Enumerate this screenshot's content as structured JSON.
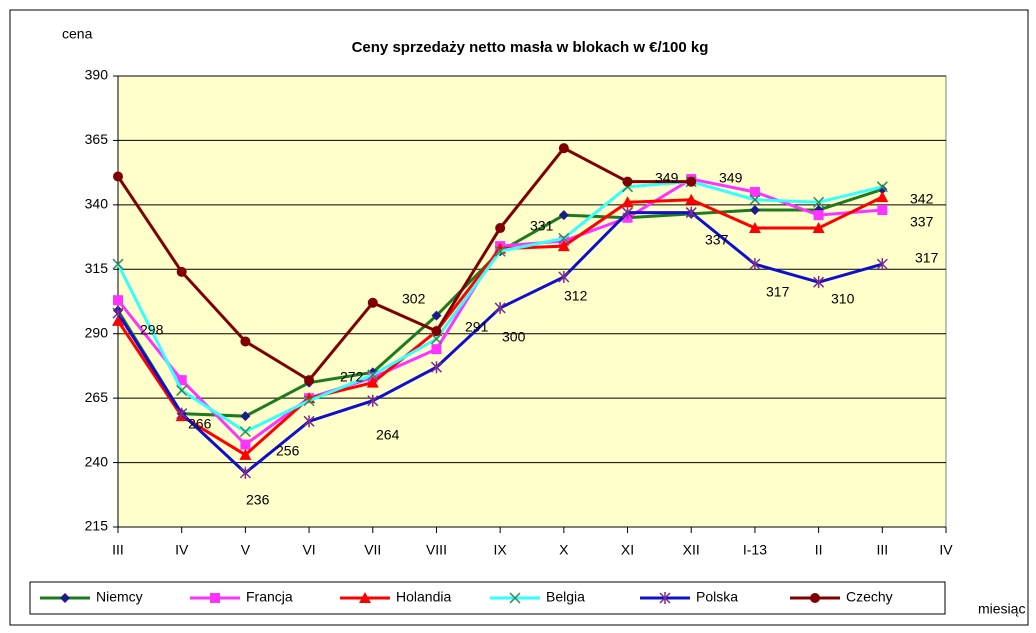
{
  "chart_data": {
    "type": "line",
    "title": "Ceny sprzedaży netto masła w blokach w €/100 kg",
    "y_label": "cena",
    "x_label": "miesiąc",
    "categories": [
      "III",
      "IV",
      "V",
      "VI",
      "VII",
      "VIII",
      "IX",
      "X",
      "XI",
      "XII",
      "I-13",
      "II",
      "III",
      "IV"
    ],
    "ylim": [
      215,
      390
    ],
    "yticks": [
      215,
      240,
      265,
      290,
      315,
      340,
      365,
      390
    ],
    "grid": true,
    "legend": "bottom",
    "series": [
      {
        "name": "Niemcy",
        "color": "#1f7a1f",
        "marker": "diamond",
        "marker_color": "#1c1c8c",
        "values": [
          299,
          259,
          258,
          271,
          275,
          297,
          322,
          336,
          335,
          336.5,
          338,
          338,
          346,
          null
        ]
      },
      {
        "name": "Francja",
        "color": "#ff33ff",
        "marker": "square",
        "marker_color": "#ff33ff",
        "values": [
          303,
          272,
          247,
          265,
          273,
          284,
          324,
          326,
          335,
          350,
          345,
          336,
          338,
          null
        ]
      },
      {
        "name": "Holandia",
        "color": "#ff0000",
        "marker": "triangle",
        "marker_color": "#ff0000",
        "values": [
          295,
          258,
          243,
          265,
          271,
          291,
          323,
          324,
          341,
          342,
          331,
          331,
          343,
          null
        ]
      },
      {
        "name": "Belgia",
        "color": "#33ffff",
        "marker": "x",
        "marker_color": "#2e8b57",
        "values": [
          317,
          268,
          252,
          264,
          274,
          288,
          322,
          327,
          347,
          349,
          342,
          341,
          347,
          null
        ]
      },
      {
        "name": "Polska",
        "color": "#1010cc",
        "marker": "star",
        "marker_color": "#7b2d8b",
        "values": [
          298,
          259,
          236,
          256,
          264,
          277,
          300,
          312,
          337,
          337,
          317,
          310,
          317,
          null
        ]
      },
      {
        "name": "Czechy",
        "color": "#800000",
        "marker": "circle",
        "marker_color": "#800000",
        "values": [
          351,
          314,
          287,
          272,
          302,
          291,
          331,
          362,
          349,
          349,
          null,
          null,
          null,
          null
        ]
      }
    ],
    "annotations": [
      "298",
      "266",
      "236",
      "256",
      "264",
      "272",
      "302",
      "291",
      "300",
      "331",
      "312",
      "349",
      "349",
      "337",
      "317",
      "310",
      "317",
      "342",
      "337"
    ]
  }
}
